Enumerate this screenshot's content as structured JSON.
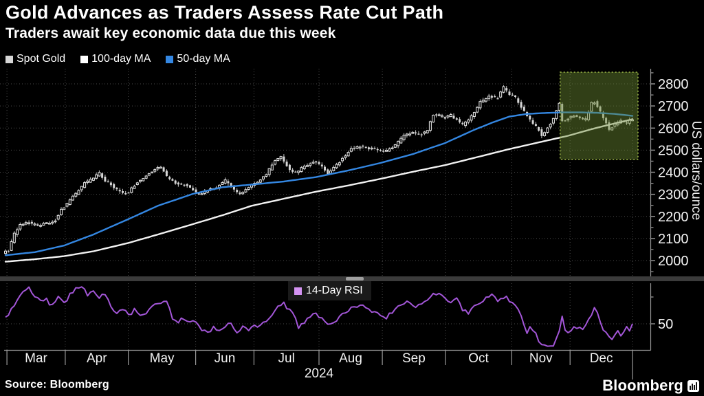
{
  "header": {
    "title": "Gold Advances as Traders Assess Rate Cut Path",
    "subtitle": "Traders await key economic data due this week"
  },
  "legend": {
    "items": [
      {
        "label": "Spot Gold",
        "color": "#d6d6d6"
      },
      {
        "label": "100-day MA",
        "color": "#ffffff"
      },
      {
        "label": "50-day MA",
        "color": "#3487e2"
      }
    ]
  },
  "rsi_legend": {
    "label": "14-Day RSI",
    "color": "#d493f2"
  },
  "source": {
    "label": "Source:  Bloomberg"
  },
  "branding": {
    "wordmark": "Bloomberg"
  },
  "colors": {
    "background": "#000000",
    "grid": "#4d4d4d",
    "axis": "#9a9a9a",
    "tick_label": "#f2f2f2",
    "candle_up_stroke": "#e9e9e9",
    "candle_down_fill": "#d6d6d6",
    "wick": "#c8c8c8",
    "ma100": "#f2f2f2",
    "ma50": "#3487e2",
    "rsi_line": "#a356d8",
    "highlight_fill": "#6d8c32",
    "highlight_border": "#a3bd4a",
    "divider": "#3b3b3b",
    "divider_handle": "#9f9f9f"
  },
  "chart_data": {
    "type": "candlestick",
    "title": "Gold Advances as Traders Assess Rate Cut Path",
    "x_axis": {
      "months": [
        "Mar",
        "Apr",
        "May",
        "Jun",
        "Jul",
        "Aug",
        "Sep",
        "Oct",
        "Nov",
        "Dec"
      ],
      "month_boundaries_day": [
        0.5,
        20.4,
        41.9,
        64.9,
        84.8,
        107,
        128.6,
        150.1,
        172.8,
        192.7,
        214
      ],
      "year_label": "2024",
      "days_total": 215
    },
    "price_panel": {
      "ylabel": "US dollars/ounce",
      "ylim": [
        1928,
        2868
      ],
      "yticks_major": [
        2000,
        2100,
        2200,
        2300,
        2400,
        2500,
        2600,
        2700,
        2800
      ],
      "ytick_minor_step": 50,
      "highlight_box": {
        "day_start": 189.3,
        "day_end": 216,
        "price_low": 2458,
        "price_high": 2853
      },
      "series": [
        {
          "name": "Spot Gold",
          "style": "candles",
          "anchors_day_price": [
            [
              0,
              2035
            ],
            [
              2,
              2045
            ],
            [
              4,
              2120
            ],
            [
              6,
              2160
            ],
            [
              9,
              2175
            ],
            [
              12,
              2157
            ],
            [
              15,
              2168
            ],
            [
              18,
              2183
            ],
            [
              20,
              2228
            ],
            [
              22,
              2258
            ],
            [
              25,
              2302
            ],
            [
              28,
              2350
            ],
            [
              31,
              2372
            ],
            [
              33,
              2396
            ],
            [
              35,
              2362
            ],
            [
              38,
              2332
            ],
            [
              41,
              2302
            ],
            [
              43,
              2312
            ],
            [
              46,
              2356
            ],
            [
              49,
              2382
            ],
            [
              52,
              2416
            ],
            [
              54,
              2426
            ],
            [
              56,
              2380
            ],
            [
              59,
              2352
            ],
            [
              62,
              2342
            ],
            [
              64,
              2332
            ],
            [
              67,
              2296
            ],
            [
              70,
              2318
            ],
            [
              73,
              2332
            ],
            [
              76,
              2362
            ],
            [
              79,
              2322
            ],
            [
              81,
              2302
            ],
            [
              84,
              2330
            ],
            [
              87,
              2358
            ],
            [
              90,
              2392
            ],
            [
              93,
              2452
            ],
            [
              95,
              2468
            ],
            [
              98,
              2412
            ],
            [
              100,
              2398
            ],
            [
              103,
              2426
            ],
            [
              106,
              2448
            ],
            [
              108,
              2438
            ],
            [
              111,
              2394
            ],
            [
              114,
              2432
            ],
            [
              117,
              2478
            ],
            [
              119,
              2506
            ],
            [
              122,
              2516
            ],
            [
              125,
              2508
            ],
            [
              128,
              2502
            ],
            [
              131,
              2496
            ],
            [
              134,
              2522
            ],
            [
              137,
              2566
            ],
            [
              140,
              2582
            ],
            [
              143,
              2572
            ],
            [
              145,
              2592
            ],
            [
              147,
              2662
            ],
            [
              149,
              2656
            ],
            [
              151,
              2646
            ],
            [
              153,
              2658
            ],
            [
              155,
              2636
            ],
            [
              157,
              2614
            ],
            [
              160,
              2652
            ],
            [
              163,
              2716
            ],
            [
              166,
              2742
            ],
            [
              169,
              2736
            ],
            [
              171,
              2784
            ],
            [
              173,
              2752
            ],
            [
              175,
              2738
            ],
            [
              177,
              2692
            ],
            [
              179,
              2656
            ],
            [
              181,
              2620
            ],
            [
              183,
              2592
            ],
            [
              184,
              2564
            ],
            [
              186,
              2602
            ],
            [
              188,
              2642
            ],
            [
              190,
              2714
            ],
            [
              191,
              2632
            ],
            [
              193,
              2642
            ],
            [
              195,
              2656
            ],
            [
              197,
              2644
            ],
            [
              199,
              2638
            ],
            [
              201,
              2712
            ],
            [
              202,
              2718
            ],
            [
              204,
              2674
            ],
            [
              206,
              2622
            ],
            [
              207,
              2590
            ],
            [
              209,
              2618
            ],
            [
              211,
              2634
            ],
            [
              213,
              2624
            ],
            [
              214,
              2634
            ]
          ]
        },
        {
          "name": "100-day MA",
          "style": "line",
          "anchors_day_price": [
            [
              0,
              1995
            ],
            [
              10,
              2006
            ],
            [
              20,
              2020
            ],
            [
              30,
              2042
            ],
            [
              42,
              2080
            ],
            [
              52,
              2118
            ],
            [
              64,
              2165
            ],
            [
              74,
              2205
            ],
            [
              84,
              2248
            ],
            [
              95,
              2280
            ],
            [
              106,
              2312
            ],
            [
              117,
              2340
            ],
            [
              128,
              2370
            ],
            [
              139,
              2402
            ],
            [
              150,
              2432
            ],
            [
              160,
              2465
            ],
            [
              172,
              2505
            ],
            [
              182,
              2535
            ],
            [
              192,
              2565
            ],
            [
              200,
              2595
            ],
            [
              207,
              2618
            ],
            [
              214,
              2640
            ]
          ]
        },
        {
          "name": "50-day MA",
          "style": "line",
          "anchors_day_price": [
            [
              0,
              2024
            ],
            [
              10,
              2038
            ],
            [
              20,
              2068
            ],
            [
              30,
              2118
            ],
            [
              42,
              2188
            ],
            [
              52,
              2248
            ],
            [
              64,
              2302
            ],
            [
              74,
              2332
            ],
            [
              84,
              2344
            ],
            [
              95,
              2358
            ],
            [
              106,
              2378
            ],
            [
              117,
              2408
            ],
            [
              128,
              2442
            ],
            [
              139,
              2482
            ],
            [
              150,
              2532
            ],
            [
              160,
              2592
            ],
            [
              166,
              2624
            ],
            [
              172,
              2652
            ],
            [
              178,
              2664
            ],
            [
              184,
              2668
            ],
            [
              190,
              2671
            ],
            [
              196,
              2671
            ],
            [
              202,
              2669
            ],
            [
              208,
              2664
            ],
            [
              214,
              2655
            ]
          ]
        }
      ]
    },
    "rsi_panel": {
      "series_name": "14-Day RSI",
      "ylim": [
        30.5,
        80.3
      ],
      "yticks": [
        70,
        50
      ],
      "ytick_labeled": 50,
      "gridline_at": 50,
      "anchors_day_value": [
        [
          0,
          54
        ],
        [
          2,
          60
        ],
        [
          4,
          68
        ],
        [
          6,
          74
        ],
        [
          8,
          76
        ],
        [
          10,
          70
        ],
        [
          12,
          66
        ],
        [
          14,
          68
        ],
        [
          16,
          63
        ],
        [
          18,
          69
        ],
        [
          20,
          65
        ],
        [
          22,
          72
        ],
        [
          24,
          76
        ],
        [
          26,
          77
        ],
        [
          28,
          72
        ],
        [
          30,
          75
        ],
        [
          32,
          70
        ],
        [
          34,
          72
        ],
        [
          36,
          62
        ],
        [
          38,
          58
        ],
        [
          40,
          61
        ],
        [
          42,
          57
        ],
        [
          44,
          60
        ],
        [
          46,
          55
        ],
        [
          48,
          58
        ],
        [
          50,
          62
        ],
        [
          53,
          66
        ],
        [
          55,
          67
        ],
        [
          57,
          55
        ],
        [
          59,
          52
        ],
        [
          61,
          54
        ],
        [
          63,
          50
        ],
        [
          65,
          52
        ],
        [
          67,
          45
        ],
        [
          69,
          43
        ],
        [
          71,
          47
        ],
        [
          73,
          44
        ],
        [
          75,
          48
        ],
        [
          77,
          50
        ],
        [
          79,
          44
        ],
        [
          81,
          47
        ],
        [
          83,
          45
        ],
        [
          85,
          50
        ],
        [
          87,
          48
        ],
        [
          89,
          53
        ],
        [
          91,
          57
        ],
        [
          93,
          62
        ],
        [
          95,
          65
        ],
        [
          97,
          60
        ],
        [
          99,
          55
        ],
        [
          100,
          48
        ],
        [
          102,
          51
        ],
        [
          104,
          56
        ],
        [
          106,
          58
        ],
        [
          108,
          54
        ],
        [
          110,
          51
        ],
        [
          112,
          50
        ],
        [
          114,
          56
        ],
        [
          116,
          59
        ],
        [
          118,
          61
        ],
        [
          120,
          63
        ],
        [
          122,
          64
        ],
        [
          124,
          60
        ],
        [
          126,
          58
        ],
        [
          128,
          57
        ],
        [
          130,
          55
        ],
        [
          132,
          59
        ],
        [
          134,
          63
        ],
        [
          136,
          66
        ],
        [
          138,
          67
        ],
        [
          140,
          62
        ],
        [
          142,
          65
        ],
        [
          144,
          69
        ],
        [
          146,
          72
        ],
        [
          148,
          73
        ],
        [
          150,
          68
        ],
        [
          152,
          66
        ],
        [
          154,
          69
        ],
        [
          156,
          61
        ],
        [
          158,
          57
        ],
        [
          160,
          63
        ],
        [
          162,
          66
        ],
        [
          164,
          69
        ],
        [
          166,
          71
        ],
        [
          168,
          67
        ],
        [
          170,
          69
        ],
        [
          171,
          71
        ],
        [
          172,
          66
        ],
        [
          174,
          64
        ],
        [
          175,
          60
        ],
        [
          176,
          55
        ],
        [
          177,
          48
        ],
        [
          178,
          44
        ],
        [
          179,
          47
        ],
        [
          181,
          43
        ],
        [
          182,
          38
        ],
        [
          183,
          36
        ],
        [
          184,
          34
        ],
        [
          185,
          33
        ],
        [
          186,
          32
        ],
        [
          187,
          33
        ],
        [
          188,
          38
        ],
        [
          189,
          45
        ],
        [
          190,
          56
        ],
        [
          191,
          46
        ],
        [
          192,
          44
        ],
        [
          193,
          46
        ],
        [
          194,
          47
        ],
        [
          195,
          48
        ],
        [
          196,
          47
        ],
        [
          197,
          46
        ],
        [
          198,
          49
        ],
        [
          199,
          53
        ],
        [
          200,
          57
        ],
        [
          201,
          61
        ],
        [
          202,
          58
        ],
        [
          203,
          50
        ],
        [
          204,
          46
        ],
        [
          205,
          44
        ],
        [
          206,
          42
        ],
        [
          207,
          38
        ],
        [
          208,
          41
        ],
        [
          209,
          46
        ],
        [
          210,
          42
        ],
        [
          211,
          44
        ],
        [
          212,
          47
        ],
        [
          213,
          45
        ],
        [
          214,
          49
        ]
      ]
    }
  }
}
